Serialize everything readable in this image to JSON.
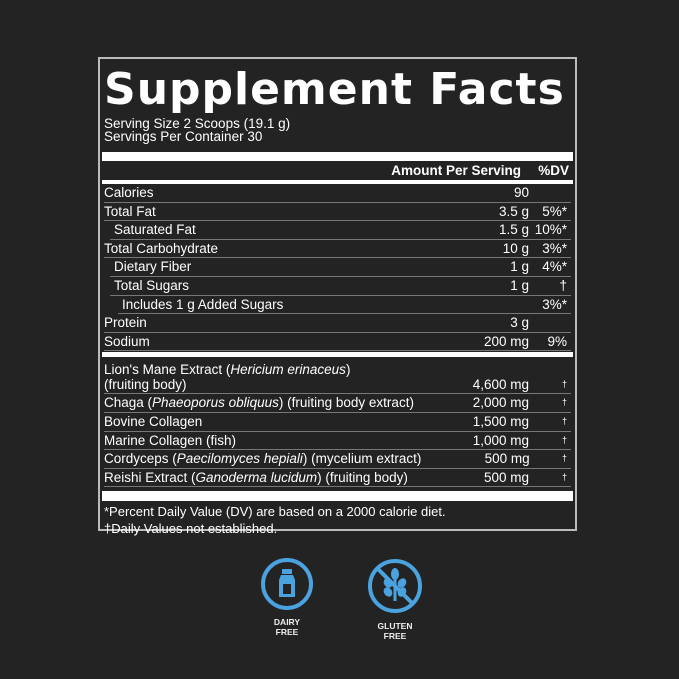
{
  "title": "Supplement Facts",
  "serving_size": "Serving Size 2 Scoops (19.1 g)",
  "servings_per_container": "Servings Per Container 30",
  "header": {
    "amount": "Amount Per Serving",
    "dv": "%DV"
  },
  "nutrients": [
    {
      "name": "Calories",
      "amount": "90",
      "dv": "",
      "indent": 0
    },
    {
      "name": "Total Fat",
      "amount": "3.5 g",
      "dv": "5%*",
      "indent": 0
    },
    {
      "name": "Saturated Fat",
      "amount": "1.5 g",
      "dv": "10%*",
      "indent": 1
    },
    {
      "name": "Total Carbohydrate",
      "amount": "10 g",
      "dv": "3%*",
      "indent": 0
    },
    {
      "name": "Dietary Fiber",
      "amount": "1 g",
      "dv": "4%*",
      "indent": 1
    },
    {
      "name": "Total Sugars",
      "amount": "1 g",
      "dv": "†",
      "indent": 1
    },
    {
      "name": "Includes 1 g Added Sugars",
      "amount": "",
      "dv": "3%*",
      "indent": 2
    },
    {
      "name": "Protein",
      "amount": "3 g",
      "dv": "",
      "indent": 0
    },
    {
      "name": "Sodium",
      "amount": "200 mg",
      "dv": "9%",
      "indent": 0
    }
  ],
  "ingredients": [
    {
      "name": "Lion's Mane Extract (",
      "latin": "Hericium erinaceus",
      "after": ")",
      "line2": " (fruiting body)",
      "amount": "4,600 mg",
      "dv": "†"
    },
    {
      "name": "Chaga (",
      "latin": "Phaeoporus obliquus",
      "after": ") (fruiting body extract)",
      "amount": "2,000 mg",
      "dv": "†"
    },
    {
      "name": "Bovine Collagen",
      "latin": "",
      "after": "",
      "amount": "1,500 mg",
      "dv": "†"
    },
    {
      "name": "Marine Collagen (fish)",
      "latin": "",
      "after": "",
      "amount": "1,000 mg",
      "dv": "†"
    },
    {
      "name": "Cordyceps (",
      "latin": "Paecilomyces hepiali",
      "after": ") (mycelium extract)",
      "amount": "500 mg",
      "dv": "†"
    },
    {
      "name": "Reishi Extract (",
      "latin": "Ganoderma lucidum",
      "after": ") (fruiting body)",
      "amount": "500 mg",
      "dv": "†"
    }
  ],
  "footnotes": [
    "*Percent Daily Value (DV) are based on a 2000 calorie diet.",
    "†Daily Values not established."
  ],
  "badges": [
    {
      "line1": "DAIRY",
      "line2": "FREE",
      "icon": "milk-bottle-icon"
    },
    {
      "line1": "GLUTEN",
      "line2": "FREE",
      "icon": "no-wheat-icon"
    }
  ],
  "colors": {
    "background": "#232323",
    "badge": "#4aa3df"
  }
}
